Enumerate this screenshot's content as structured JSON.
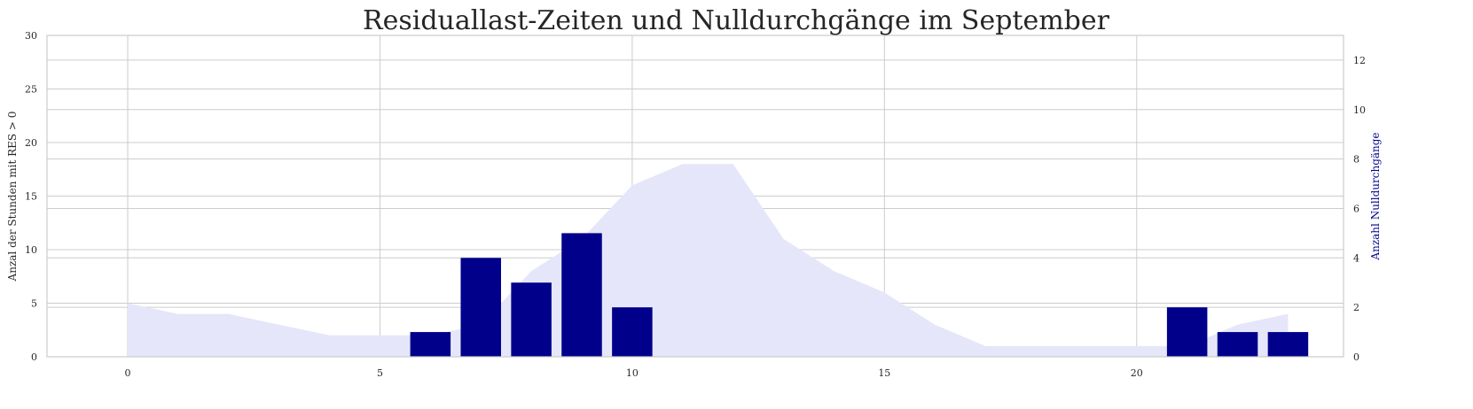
{
  "chart_data": {
    "type": "bar",
    "title": "Residuallast-Zeiten und Nulldurchgänge im September",
    "xlabel": "",
    "ylabel_left": "Anzal der Stunden mit RES > 0",
    "ylabel_right": "Anzahl Nulldurchgänge",
    "xlim": [
      -1.6,
      24.1
    ],
    "ylim_left": [
      0,
      30
    ],
    "ylim_right": [
      0,
      13
    ],
    "x_ticks": [
      0,
      5,
      10,
      15,
      20
    ],
    "y_left_ticks": [
      0,
      5,
      10,
      15,
      20,
      25,
      30
    ],
    "y_right_ticks": [
      0,
      2,
      4,
      6,
      8,
      10,
      12
    ],
    "grid": true,
    "area_series": {
      "axis": "left",
      "color": "#e6e6fa",
      "x": [
        0,
        1,
        2,
        3,
        4,
        5,
        6,
        7,
        8,
        9,
        10,
        11,
        12,
        13,
        14,
        15,
        16,
        17,
        18,
        19,
        20,
        21,
        22,
        23
      ],
      "values": [
        5,
        4,
        4,
        3,
        2,
        2,
        2,
        3,
        8,
        11,
        16,
        18,
        18,
        11,
        8,
        6,
        3,
        1,
        1,
        1,
        1,
        1,
        3,
        4
      ]
    },
    "bar_series": {
      "axis": "right",
      "color": "#00008b",
      "x": [
        6,
        7,
        8,
        9,
        10,
        21,
        22,
        23
      ],
      "values": [
        1,
        4,
        3,
        5,
        2,
        2,
        1,
        1
      ]
    },
    "colors": {
      "grid": "#cccccc",
      "spine": "#cccccc",
      "tick_text": "#262626",
      "right_label": "#00008b"
    }
  }
}
